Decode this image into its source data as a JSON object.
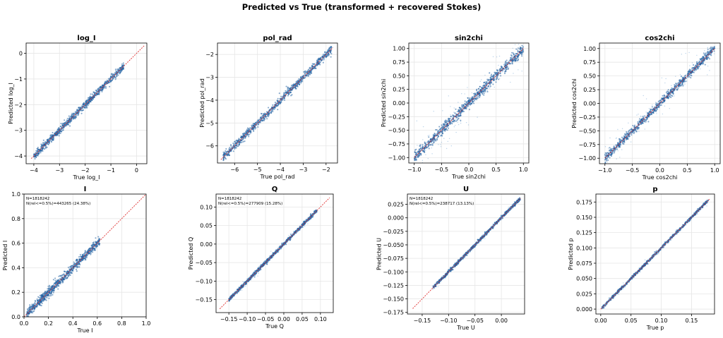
{
  "figure": {
    "title": "Predicted vs True (transformed + recovered Stokes)"
  },
  "colors": {
    "points": "#1f5fa0",
    "points_light": "#6a9fd0",
    "identity_line": "#e03030",
    "grid": "#e6e6e6"
  },
  "chart_data": [
    {
      "type": "scatter",
      "title": "log_I",
      "xlabel": "True log_I",
      "ylabel": "Predicted log_I",
      "xlim": [
        -4.3,
        0.4
      ],
      "ylim": [
        -4.3,
        0.4
      ],
      "xticks": [
        -4,
        -3,
        -2,
        -1,
        0
      ],
      "xticklabels": [
        "−4",
        "−3",
        "−2",
        "−1",
        "0"
      ],
      "yticks": [
        -4,
        -3,
        -2,
        -1,
        0
      ],
      "yticklabels": [
        "−4",
        "−3",
        "−2",
        "−1",
        "0"
      ],
      "identity_line": [
        -4.1,
        0.3
      ],
      "data_range": [
        -4.0,
        -0.5
      ],
      "scatter": 0.07,
      "outliers": 0.005,
      "annotation": []
    },
    {
      "type": "scatter",
      "title": "pol_rad",
      "xlabel": "True pol_rad",
      "ylabel": "Predicted pol_rad",
      "xlim": [
        -6.75,
        -1.5
      ],
      "ylim": [
        -6.75,
        -1.5
      ],
      "xticks": [
        -6,
        -5,
        -4,
        -3,
        -2
      ],
      "xticklabels": [
        "−6",
        "−5",
        "−4",
        "−3",
        "−2"
      ],
      "yticks": [
        -6,
        -5,
        -4,
        -3,
        -2
      ],
      "yticklabels": [
        "−6",
        "−5",
        "−4",
        "−3",
        "−2"
      ],
      "identity_line": [
        -6.6,
        -1.7
      ],
      "data_range": [
        -6.5,
        -1.75
      ],
      "scatter": 0.09,
      "outliers": 0.005,
      "annotation": []
    },
    {
      "type": "scatter",
      "title": "sin2chi",
      "xlabel": "True sin2chi",
      "ylabel": "Predicted sin2chi",
      "xlim": [
        -1.1,
        1.1
      ],
      "ylim": [
        -1.1,
        1.1
      ],
      "xticks": [
        -1.0,
        -0.5,
        0.0,
        0.5,
        1.0
      ],
      "xticklabels": [
        "−1.0",
        "−0.5",
        "0.0",
        "0.5",
        "1.0"
      ],
      "yticks": [
        -1.0,
        -0.75,
        -0.5,
        -0.25,
        0.0,
        0.25,
        0.5,
        0.75,
        1.0
      ],
      "yticklabels": [
        "−1.00",
        "−0.75",
        "−0.50",
        "−0.25",
        "0.00",
        "0.25",
        "0.50",
        "0.75",
        "1.00"
      ],
      "identity_line": [
        -1.0,
        1.0
      ],
      "data_range": [
        -1.0,
        1.0
      ],
      "scatter": 0.05,
      "outliers": 0.09,
      "annotation": []
    },
    {
      "type": "scatter",
      "title": "cos2chi",
      "xlabel": "True cos2chi",
      "ylabel": "Predicted cos2chi",
      "xlim": [
        -1.1,
        1.1
      ],
      "ylim": [
        -1.1,
        1.1
      ],
      "xticks": [
        -1.0,
        -0.5,
        0.0,
        0.5,
        1.0
      ],
      "xticklabels": [
        "−1.0",
        "−0.5",
        "0.0",
        "0.5",
        "1.0"
      ],
      "yticks": [
        -1.0,
        -0.75,
        -0.5,
        -0.25,
        0.0,
        0.25,
        0.5,
        0.75,
        1.0
      ],
      "yticklabels": [
        "−1.00",
        "−0.75",
        "−0.50",
        "−0.25",
        "0.00",
        "0.25",
        "0.50",
        "0.75",
        "1.00"
      ],
      "identity_line": [
        -1.0,
        1.0
      ],
      "data_range": [
        -1.0,
        1.0
      ],
      "scatter": 0.04,
      "outliers": 0.07,
      "annotation": []
    },
    {
      "type": "scatter",
      "title": "I",
      "xlabel": "True I",
      "ylabel": "Predicted I",
      "xlim": [
        0.0,
        1.0
      ],
      "ylim": [
        0.0,
        1.0
      ],
      "xticks": [
        0.0,
        0.2,
        0.4,
        0.6,
        0.8,
        1.0
      ],
      "xticklabels": [
        "0.0",
        "0.2",
        "0.4",
        "0.6",
        "0.8",
        "1.0"
      ],
      "yticks": [
        0.0,
        0.2,
        0.4,
        0.6,
        0.8,
        1.0
      ],
      "yticklabels": [
        "0.0",
        "0.2",
        "0.4",
        "0.6",
        "0.8",
        "1.0"
      ],
      "identity_line": [
        0.0,
        1.0
      ],
      "data_range": [
        0.02,
        0.62
      ],
      "scatter": 0.018,
      "outliers": 0.005,
      "annotation": [
        "N=1818242",
        "N(rel<=0.5%)=443265 (24.38%)"
      ]
    },
    {
      "type": "scatter",
      "title": "Q",
      "xlabel": "True Q",
      "ylabel": "Predicted Q",
      "xlim": [
        -0.185,
        0.135
      ],
      "ylim": [
        -0.185,
        0.135
      ],
      "xticks": [
        -0.15,
        -0.1,
        -0.05,
        0.0,
        0.05,
        0.1
      ],
      "xticklabels": [
        "−0.15",
        "−0.10",
        "−0.05",
        "0.00",
        "0.05",
        "0.10"
      ],
      "yticks": [
        -0.15,
        -0.1,
        -0.05,
        0.0,
        0.05,
        0.1
      ],
      "yticklabels": [
        "−0.15",
        "−0.10",
        "−0.05",
        "0.00",
        "0.05",
        "0.10"
      ],
      "identity_line": [
        -0.175,
        0.125
      ],
      "data_range": [
        -0.15,
        0.09
      ],
      "scatter": 0.0025,
      "outliers": 0.002,
      "annotation": [
        "N=1818242",
        "N(rel<=0.5%)=277909 (15.28%)"
      ]
    },
    {
      "type": "scatter",
      "title": "U",
      "xlabel": "True U",
      "ylabel": "Predicted U",
      "xlim": [
        -0.178,
        0.044
      ],
      "ylim": [
        -0.178,
        0.044
      ],
      "xticks": [
        -0.15,
        -0.1,
        -0.05,
        0.0
      ],
      "xticklabels": [
        "−0.15",
        "−0.10",
        "−0.05",
        "0.00"
      ],
      "yticks": [
        -0.175,
        -0.15,
        -0.125,
        -0.1,
        -0.075,
        -0.05,
        -0.025,
        0.0,
        0.025
      ],
      "yticklabels": [
        "−0.175",
        "−0.150",
        "−0.125",
        "−0.100",
        "−0.075",
        "−0.050",
        "−0.025",
        "0.000",
        "0.025"
      ],
      "identity_line": [
        -0.168,
        0.036
      ],
      "data_range": [
        -0.13,
        0.036
      ],
      "scatter": 0.0015,
      "outliers": 0.001,
      "annotation": [
        "N=1818242",
        "N(rel<=0.5%)=238717 (13.13%)"
      ]
    },
    {
      "type": "scatter",
      "title": "p",
      "xlabel": "True p",
      "ylabel": "Predicted p",
      "xlim": [
        -0.008,
        0.188
      ],
      "ylim": [
        -0.008,
        0.188
      ],
      "xticks": [
        0.0,
        0.05,
        0.1,
        0.15
      ],
      "xticklabels": [
        "0.00",
        "0.05",
        "0.10",
        "0.15"
      ],
      "yticks": [
        0.0,
        0.025,
        0.05,
        0.075,
        0.1,
        0.125,
        0.15,
        0.175
      ],
      "yticklabels": [
        "0.000",
        "0.025",
        "0.050",
        "0.075",
        "0.100",
        "0.125",
        "0.150",
        "0.175"
      ],
      "identity_line": [
        0.0,
        0.18
      ],
      "data_range": [
        0.002,
        0.178
      ],
      "scatter": 0.0012,
      "outliers": 0.001,
      "annotation": []
    }
  ]
}
